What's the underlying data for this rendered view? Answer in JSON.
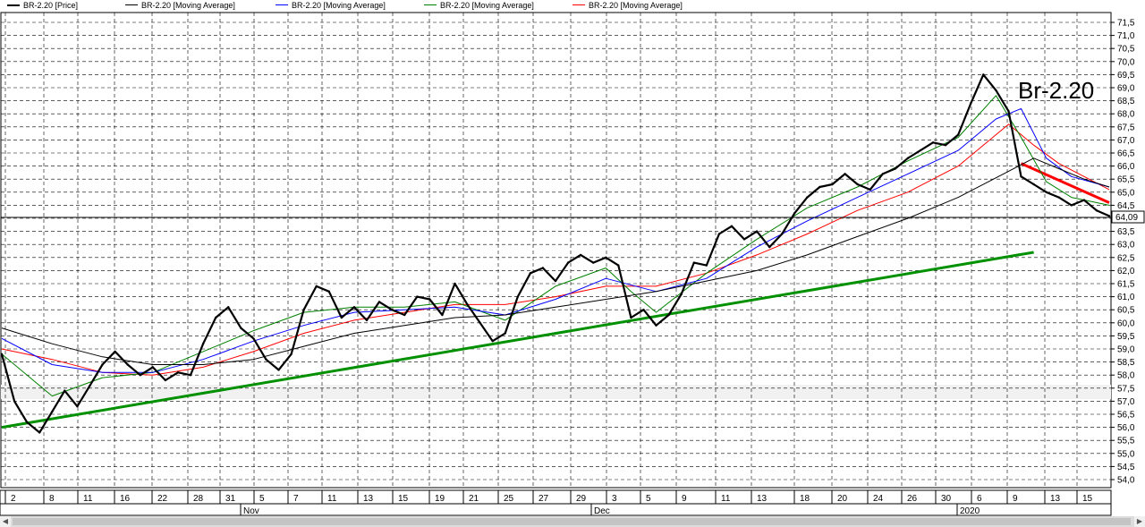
{
  "legend": [
    {
      "label": "BR-2.20 [Price]",
      "color": "#000000"
    },
    {
      "label": "BR-2.20 [Moving Average]",
      "color": "#000000"
    },
    {
      "label": "BR-2.20 [Moving Average]",
      "color": "#0000ff"
    },
    {
      "label": "BR-2.20 [Moving Average]",
      "color": "#008000"
    },
    {
      "label": "BR-2.20 [Moving Average]",
      "color": "#ff0000"
    }
  ],
  "annotation": "Br-2.20",
  "last_price_label": "64,09",
  "chart_data": {
    "type": "line",
    "title": "",
    "y_ticks": [
      "71,5",
      "71,0",
      "70,5",
      "70,0",
      "69,5",
      "69,0",
      "68,5",
      "68,0",
      "67,5",
      "67,0",
      "66,5",
      "66,0",
      "65,5",
      "65,0",
      "64,5",
      "64,0",
      "63,5",
      "63,0",
      "62,5",
      "62,0",
      "61,5",
      "61,0",
      "60,5",
      "60,0",
      "59,5",
      "59,0",
      "58,5",
      "58,0",
      "57,5",
      "57,0",
      "56,5",
      "56,0",
      "55,5",
      "55,0",
      "54,5",
      "54,0"
    ],
    "ylim": [
      54.0,
      71.5
    ],
    "x_day_labels": [
      "2",
      "8",
      "11",
      "16",
      "22",
      "28",
      "31",
      "5",
      "7",
      "11",
      "13",
      "15",
      "19",
      "21",
      "25",
      "27",
      "29",
      "3",
      "5",
      "9",
      "11",
      "13",
      "18",
      "20",
      "24",
      "26",
      "30",
      "6",
      "9",
      "13",
      "15"
    ],
    "month_labels": [
      "Nov",
      "Dec",
      "2020"
    ],
    "grid": true,
    "last_price": 64.09,
    "series": [
      {
        "name": "BR-2.20 [Price]",
        "color": "#000000",
        "points": [
          [
            0,
            58.8
          ],
          [
            1,
            57.0
          ],
          [
            2,
            56.2
          ],
          [
            3,
            55.8
          ],
          [
            4,
            56.6
          ],
          [
            5,
            57.4
          ],
          [
            6,
            56.8
          ],
          [
            7,
            57.6
          ],
          [
            8,
            58.4
          ],
          [
            9,
            58.9
          ],
          [
            10,
            58.4
          ],
          [
            11,
            58.0
          ],
          [
            12,
            58.3
          ],
          [
            13,
            57.8
          ],
          [
            14,
            58.1
          ],
          [
            15,
            58.0
          ],
          [
            16,
            59.2
          ],
          [
            17,
            60.2
          ],
          [
            18,
            60.6
          ],
          [
            19,
            59.8
          ],
          [
            20,
            59.4
          ],
          [
            21,
            58.6
          ],
          [
            22,
            58.2
          ],
          [
            23,
            58.8
          ],
          [
            24,
            60.5
          ],
          [
            25,
            61.4
          ],
          [
            26,
            61.2
          ],
          [
            27,
            60.2
          ],
          [
            28,
            60.6
          ],
          [
            29,
            60.1
          ],
          [
            30,
            60.8
          ],
          [
            31,
            60.5
          ],
          [
            32,
            60.3
          ],
          [
            33,
            61.0
          ],
          [
            34,
            60.9
          ],
          [
            35,
            60.3
          ],
          [
            36,
            61.5
          ],
          [
            37,
            60.7
          ],
          [
            38,
            60.0
          ],
          [
            39,
            59.3
          ],
          [
            40,
            59.6
          ],
          [
            41,
            61.0
          ],
          [
            42,
            61.9
          ],
          [
            43,
            62.1
          ],
          [
            44,
            61.6
          ],
          [
            45,
            62.3
          ],
          [
            46,
            62.6
          ],
          [
            47,
            62.3
          ],
          [
            48,
            62.5
          ],
          [
            49,
            62.2
          ],
          [
            50,
            60.2
          ],
          [
            51,
            60.5
          ],
          [
            52,
            59.9
          ],
          [
            53,
            60.3
          ],
          [
            54,
            61.1
          ],
          [
            55,
            62.3
          ],
          [
            56,
            62.2
          ],
          [
            57,
            63.4
          ],
          [
            58,
            63.7
          ],
          [
            59,
            63.2
          ],
          [
            60,
            63.5
          ],
          [
            61,
            62.9
          ],
          [
            62,
            63.4
          ],
          [
            63,
            64.2
          ],
          [
            64,
            64.8
          ],
          [
            65,
            65.2
          ],
          [
            66,
            65.3
          ],
          [
            67,
            65.7
          ],
          [
            68,
            65.3
          ],
          [
            69,
            65.1
          ],
          [
            70,
            65.7
          ],
          [
            71,
            65.9
          ],
          [
            72,
            66.3
          ],
          [
            73,
            66.6
          ],
          [
            74,
            66.9
          ],
          [
            75,
            66.8
          ],
          [
            76,
            67.2
          ],
          [
            77,
            68.4
          ],
          [
            78,
            69.5
          ],
          [
            79,
            68.9
          ],
          [
            80,
            68.1
          ],
          [
            81,
            65.6
          ],
          [
            82,
            65.3
          ],
          [
            83,
            65.0
          ],
          [
            84,
            64.8
          ],
          [
            85,
            64.5
          ],
          [
            86,
            64.7
          ],
          [
            87,
            64.3
          ],
          [
            88,
            64.09
          ]
        ]
      },
      {
        "name": "BR-2.20 [Moving Average]",
        "color": "#000000",
        "points": [
          [
            0,
            59.8
          ],
          [
            4,
            59.2
          ],
          [
            8,
            58.7
          ],
          [
            12,
            58.4
          ],
          [
            16,
            58.4
          ],
          [
            20,
            58.6
          ],
          [
            24,
            59.1
          ],
          [
            28,
            59.6
          ],
          [
            32,
            59.9
          ],
          [
            36,
            60.2
          ],
          [
            40,
            60.3
          ],
          [
            44,
            60.6
          ],
          [
            48,
            60.9
          ],
          [
            52,
            61.2
          ],
          [
            56,
            61.6
          ],
          [
            60,
            62.0
          ],
          [
            64,
            62.6
          ],
          [
            68,
            63.3
          ],
          [
            72,
            64.0
          ],
          [
            76,
            64.8
          ],
          [
            80,
            65.8
          ],
          [
            82,
            66.3
          ],
          [
            84,
            65.9
          ],
          [
            86,
            65.5
          ],
          [
            88,
            65.2
          ]
        ]
      },
      {
        "name": "BR-2.20 [Moving Average]",
        "color": "#0000ff",
        "points": [
          [
            0,
            59.4
          ],
          [
            4,
            58.4
          ],
          [
            8,
            58.1
          ],
          [
            12,
            58.1
          ],
          [
            16,
            58.6
          ],
          [
            20,
            59.3
          ],
          [
            24,
            59.9
          ],
          [
            28,
            60.4
          ],
          [
            32,
            60.5
          ],
          [
            36,
            60.6
          ],
          [
            40,
            60.3
          ],
          [
            44,
            60.9
          ],
          [
            48,
            61.7
          ],
          [
            52,
            61.2
          ],
          [
            56,
            61.7
          ],
          [
            60,
            62.9
          ],
          [
            64,
            63.9
          ],
          [
            68,
            64.8
          ],
          [
            72,
            65.7
          ],
          [
            76,
            66.6
          ],
          [
            79,
            67.8
          ],
          [
            81,
            68.2
          ],
          [
            83,
            66.3
          ],
          [
            85,
            65.6
          ],
          [
            88,
            65.2
          ]
        ]
      },
      {
        "name": "BR-2.20 [Moving Average]",
        "color": "#008000",
        "points": [
          [
            0,
            58.8
          ],
          [
            4,
            57.2
          ],
          [
            8,
            57.9
          ],
          [
            12,
            58.1
          ],
          [
            16,
            58.9
          ],
          [
            20,
            59.7
          ],
          [
            24,
            60.4
          ],
          [
            28,
            60.6
          ],
          [
            32,
            60.6
          ],
          [
            36,
            60.8
          ],
          [
            40,
            60.1
          ],
          [
            44,
            61.4
          ],
          [
            48,
            62.1
          ],
          [
            50,
            61.2
          ],
          [
            52,
            60.4
          ],
          [
            56,
            61.9
          ],
          [
            60,
            63.2
          ],
          [
            64,
            64.4
          ],
          [
            68,
            65.2
          ],
          [
            72,
            66.2
          ],
          [
            76,
            67.1
          ],
          [
            79,
            68.7
          ],
          [
            81,
            67.1
          ],
          [
            83,
            65.4
          ],
          [
            85,
            64.8
          ],
          [
            88,
            64.5
          ]
        ]
      },
      {
        "name": "BR-2.20 [Moving Average]",
        "color": "#ff0000",
        "points": [
          [
            0,
            59.0
          ],
          [
            4,
            58.6
          ],
          [
            8,
            58.1
          ],
          [
            12,
            58.0
          ],
          [
            16,
            58.3
          ],
          [
            20,
            58.9
          ],
          [
            24,
            59.6
          ],
          [
            28,
            60.1
          ],
          [
            32,
            60.4
          ],
          [
            36,
            60.7
          ],
          [
            40,
            60.7
          ],
          [
            44,
            61.0
          ],
          [
            48,
            61.4
          ],
          [
            52,
            61.4
          ],
          [
            56,
            61.9
          ],
          [
            60,
            62.6
          ],
          [
            64,
            63.4
          ],
          [
            68,
            64.3
          ],
          [
            72,
            65.0
          ],
          [
            76,
            66.0
          ],
          [
            80,
            67.6
          ],
          [
            82,
            66.8
          ],
          [
            84,
            66.1
          ],
          [
            86,
            65.6
          ],
          [
            88,
            65.1
          ]
        ]
      }
    ],
    "trendlines": [
      {
        "color": "#009000",
        "from": [
          0,
          56.0
        ],
        "to": [
          82,
          62.7
        ]
      },
      {
        "color": "#ff0000",
        "from": [
          81,
          66.1
        ],
        "to": [
          88,
          64.6
        ]
      }
    ]
  }
}
